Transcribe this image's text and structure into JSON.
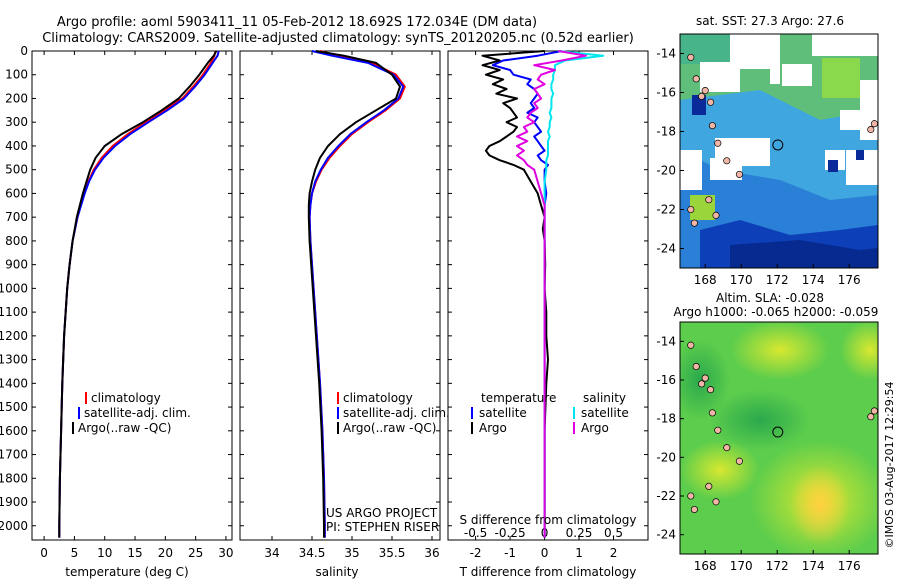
{
  "header": {
    "title_line1": "Argo profile: aoml 5903411_11 05-Feb-2012 18.692S 172.034E (DM data)",
    "title_line2": "Climatology: CARS2009. Satellite-adjusted climatology: synTS_20120205.nc (0.52d earlier)"
  },
  "colors": {
    "climatology": "#ff0000",
    "satellite": "#0000ff",
    "argo": "#000000",
    "cyan": "#00e5ee",
    "magenta": "#e000e0"
  },
  "depth_ticks": [
    0,
    100,
    200,
    300,
    400,
    500,
    600,
    700,
    800,
    900,
    1000,
    1100,
    1200,
    1300,
    1400,
    1500,
    1600,
    1700,
    1800,
    1900,
    2000
  ],
  "chart_data": [
    {
      "type": "line",
      "id": "temperature",
      "xlabel": "temperature (deg C)",
      "ylabel": "",
      "xlim": [
        -2,
        31
      ],
      "ylim": [
        2060,
        0
      ],
      "xticks": [
        0,
        5,
        10,
        15,
        20,
        25,
        30
      ],
      "legend": [
        "climatology",
        "satellite-adj. clim.",
        "Argo(..raw -QC)"
      ],
      "depth": [
        0,
        20,
        50,
        100,
        150,
        200,
        250,
        300,
        350,
        400,
        450,
        500,
        550,
        600,
        700,
        800,
        900,
        1000,
        1200,
        1400,
        1600,
        1800,
        2000,
        2050
      ],
      "series": [
        {
          "name": "climatology",
          "color": "red",
          "values": [
            28.3,
            28.1,
            27.5,
            26.2,
            24.6,
            22.8,
            19.8,
            16.8,
            13.8,
            11.3,
            9.5,
            8.2,
            7.3,
            6.6,
            5.5,
            4.7,
            4.2,
            3.8,
            3.3,
            3.0,
            2.8,
            2.6,
            2.5,
            2.5
          ]
        },
        {
          "name": "satellite-adj. clim.",
          "color": "blue",
          "values": [
            28.8,
            28.6,
            27.8,
            26.5,
            24.9,
            23.1,
            20.3,
            17.2,
            14.2,
            11.7,
            9.8,
            8.4,
            7.4,
            6.7,
            5.5,
            4.7,
            4.2,
            3.8,
            3.3,
            3.0,
            2.8,
            2.6,
            2.5,
            2.5
          ]
        },
        {
          "name": "Argo(..raw -QC)",
          "color": "black",
          "values": [
            28.4,
            28.0,
            27.0,
            25.6,
            24.0,
            22.2,
            19.4,
            16.3,
            12.8,
            10.0,
            8.5,
            7.6,
            7.0,
            6.4,
            5.4,
            4.7,
            4.2,
            3.8,
            3.3,
            3.0,
            2.8,
            2.6,
            2.5,
            2.5
          ]
        }
      ]
    },
    {
      "type": "line",
      "id": "salinity",
      "xlabel": "salinity",
      "xlim": [
        33.6,
        36.1
      ],
      "ylim": [
        2060,
        0
      ],
      "xticks": [
        34,
        34.5,
        35,
        35.5,
        36
      ],
      "legend": [
        "climatology",
        "satellite-adj. clim.",
        "Argo(..raw -QC)"
      ],
      "annotation": [
        "US ARGO PROJECT",
        "PI: STEPHEN RISER"
      ],
      "depth": [
        0,
        20,
        50,
        100,
        150,
        200,
        250,
        300,
        350,
        400,
        450,
        500,
        550,
        600,
        650,
        700,
        800,
        900,
        1000,
        1200,
        1400,
        1600,
        1800,
        2000,
        2050
      ],
      "series": [
        {
          "name": "climatology",
          "color": "red",
          "values": [
            34.6,
            34.82,
            35.25,
            35.55,
            35.66,
            35.6,
            35.42,
            35.2,
            35.0,
            34.85,
            34.72,
            34.62,
            34.55,
            34.5,
            34.48,
            34.47,
            34.48,
            34.5,
            34.52,
            34.56,
            34.6,
            34.63,
            34.65,
            34.66,
            34.66
          ]
        },
        {
          "name": "satellite-adj. clim.",
          "color": "blue",
          "values": [
            34.5,
            34.75,
            35.2,
            35.52,
            35.64,
            35.58,
            35.4,
            35.18,
            34.98,
            34.83,
            34.7,
            34.61,
            34.54,
            34.5,
            34.48,
            34.47,
            34.48,
            34.5,
            34.52,
            34.56,
            34.6,
            34.63,
            34.65,
            34.66,
            34.66
          ]
        },
        {
          "name": "Argo(..raw -QC)",
          "color": "black",
          "values": [
            34.55,
            34.9,
            35.3,
            35.5,
            35.6,
            35.55,
            35.3,
            35.05,
            34.85,
            34.7,
            34.6,
            34.54,
            34.5,
            34.47,
            34.46,
            34.46,
            34.47,
            34.49,
            34.51,
            34.55,
            34.59,
            34.62,
            34.64,
            34.65,
            34.65
          ]
        }
      ]
    },
    {
      "type": "line",
      "id": "difference",
      "xlabel": "T difference from climatology",
      "xlabel_top": "S difference from climatology",
      "xlim": [
        -2.8,
        3
      ],
      "ylim": [
        2060,
        0
      ],
      "xticks": [
        -2,
        -1,
        0,
        1,
        2
      ],
      "xticks_top_labels": [
        "-0.5",
        "-0.25",
        "0",
        "0.25",
        "0.5"
      ],
      "xticks_top_pos": [
        -2,
        -1,
        0,
        1,
        2
      ],
      "legend_headers": [
        "temperature",
        "salinity"
      ],
      "legend": [
        "satellite",
        "Argo",
        "satellite",
        "Argo"
      ],
      "depth": [
        0,
        20,
        40,
        60,
        80,
        100,
        120,
        140,
        160,
        180,
        200,
        220,
        240,
        260,
        280,
        300,
        320,
        340,
        360,
        380,
        400,
        420,
        440,
        460,
        480,
        500,
        550,
        600,
        650,
        700,
        750,
        800,
        900,
        1000,
        1100,
        1200,
        1300,
        1400,
        1600,
        1800,
        2000,
        2050
      ],
      "series": [
        {
          "name": "temperature satellite",
          "color": "blue",
          "values": [
            0.5,
            -0.2,
            -1.2,
            -1.5,
            -1.0,
            -0.9,
            -0.4,
            -0.5,
            -0.3,
            -0.2,
            -0.3,
            -0.4,
            -0.3,
            -0.5,
            -0.2,
            -0.3,
            -0.2,
            -0.1,
            -0.3,
            -0.2,
            -0.1,
            0.0,
            -0.2,
            -0.1,
            0.1,
            0.0,
            0.0,
            0.05,
            0.0,
            0.0,
            0.0,
            0.0,
            0.0,
            0.0,
            0.0,
            0.0,
            0.0,
            0.0,
            0.0,
            0.0,
            0.0,
            0.0
          ]
        },
        {
          "name": "temperature Argo",
          "color": "black",
          "values": [
            0.0,
            -1.8,
            -1.3,
            -1.8,
            -1.3,
            -1.7,
            -1.2,
            -1.5,
            -1.1,
            -1.4,
            -0.8,
            -1.2,
            -1.0,
            -0.9,
            -0.8,
            -1.1,
            -0.8,
            -0.9,
            -1.1,
            -1.3,
            -1.6,
            -1.7,
            -1.6,
            -1.3,
            -0.9,
            -0.6,
            -0.4,
            -0.2,
            -0.1,
            0.0,
            -0.05,
            0.0,
            0.02,
            0.0,
            0.05,
            0.05,
            0.1,
            0.05,
            0.0,
            0.0,
            0.0,
            0.0
          ]
        },
        {
          "name": "salinity satellite",
          "color": "cyan",
          "values": [
            0.4,
            1.7,
            0.6,
            0.3,
            0.3,
            0.25,
            0.25,
            0.2,
            0.2,
            0.25,
            0.2,
            0.2,
            0.2,
            0.15,
            0.2,
            0.15,
            0.15,
            0.1,
            0.15,
            0.1,
            0.1,
            0.1,
            0.1,
            0.05,
            0.05,
            0.05,
            0.0,
            0.0,
            0.0,
            0.0,
            0.0,
            0.0,
            0.0,
            0.0,
            0.0,
            0.0,
            0.0,
            0.0,
            0.0,
            0.0,
            0.0,
            0.0
          ]
        },
        {
          "name": "salinity Argo",
          "color": "magenta",
          "values": [
            0.4,
            1.2,
            0.5,
            -0.3,
            0.3,
            -0.1,
            -0.2,
            0.0,
            -0.3,
            -0.2,
            -0.1,
            -0.3,
            -0.2,
            -0.4,
            -0.5,
            -0.3,
            -0.6,
            -0.5,
            -0.8,
            -0.5,
            -0.8,
            -0.6,
            -0.8,
            -0.6,
            -0.5,
            -0.3,
            -0.2,
            -0.1,
            0.0,
            0.0,
            0.0,
            0.0,
            0.0,
            0.0,
            0.0,
            0.0,
            0.0,
            0.0,
            0.0,
            0.0,
            0.0,
            0.0
          ]
        }
      ]
    },
    {
      "type": "heatmap",
      "id": "sst_map",
      "title": "sat. SST: 27.3  Argo: 27.6",
      "xlim": [
        166.6,
        177.6
      ],
      "ylim": [
        -25,
        -13
      ],
      "xticks": [
        168,
        170,
        172,
        174,
        176
      ],
      "yticks": [
        -14,
        -16,
        -18,
        -20,
        -22,
        -24
      ],
      "marker": {
        "lon": 172.034,
        "lat": -18.692
      }
    },
    {
      "type": "heatmap",
      "id": "sla_map",
      "title": "Altim. SLA: -0.028",
      "subtitle": "Argo h1000: -0.065 h2000: -0.059",
      "xlim": [
        166.6,
        177.6
      ],
      "ylim": [
        -25,
        -13
      ],
      "xticks": [
        168,
        170,
        172,
        174,
        176
      ],
      "yticks": [
        -14,
        -16,
        -18,
        -20,
        -22,
        -24
      ],
      "marker": {
        "lon": 172.034,
        "lat": -18.692
      }
    }
  ],
  "footer": {
    "credit": "©IMOS 03-Aug-2017 12:29:54"
  }
}
